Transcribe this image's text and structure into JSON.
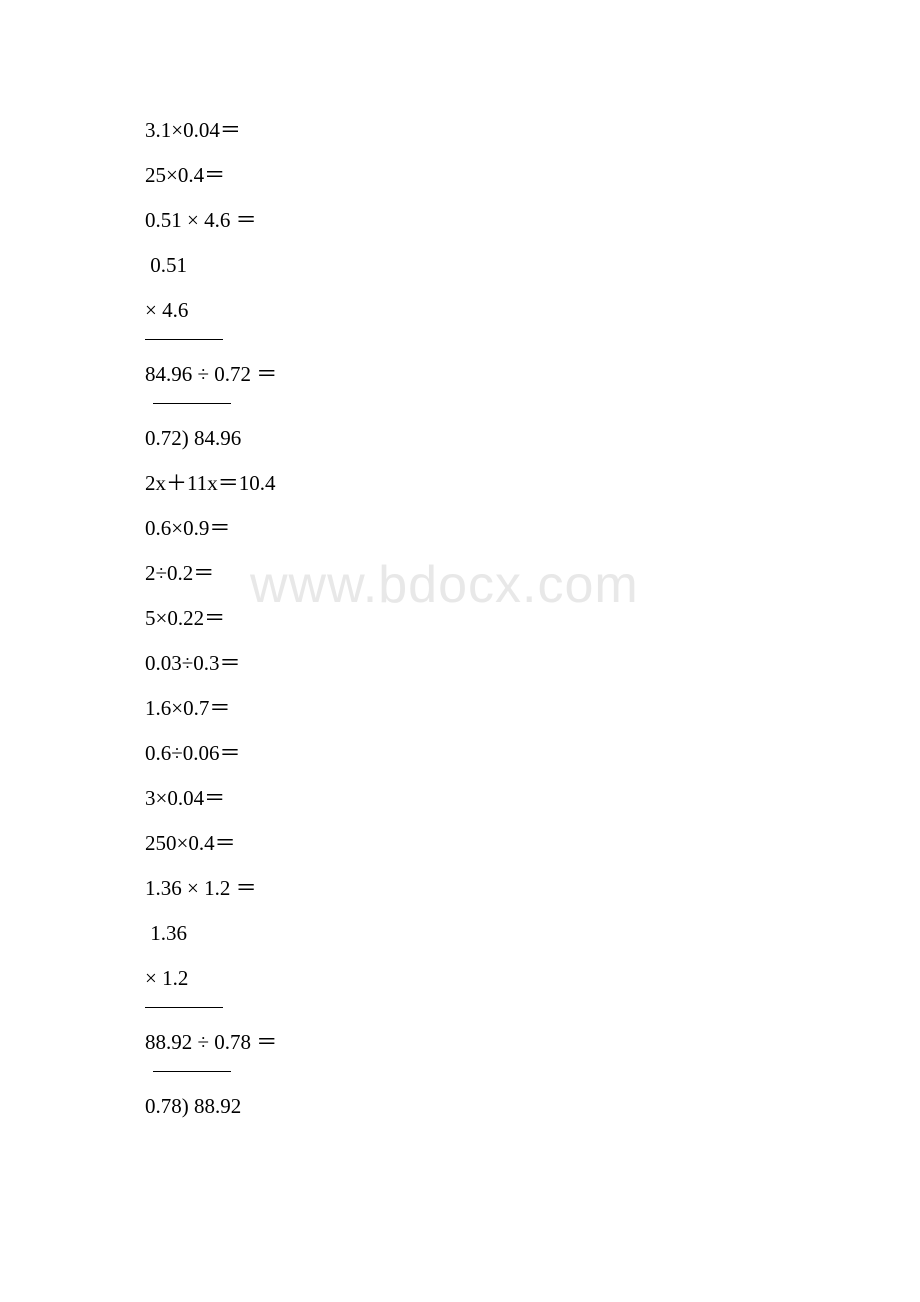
{
  "watermark": "www.bdocx.com",
  "lines": [
    {
      "type": "text",
      "value": "3.1×0.04＝"
    },
    {
      "type": "text",
      "value": "25×0.4＝"
    },
    {
      "type": "text",
      "value": "0.51 × 4.6 ＝"
    },
    {
      "type": "text",
      "value": " 0.51"
    },
    {
      "type": "text",
      "value": "× 4.6"
    },
    {
      "type": "hr",
      "indent": false
    },
    {
      "type": "text",
      "value": "84.96 ÷ 0.72 ＝"
    },
    {
      "type": "hr",
      "indent": true
    },
    {
      "type": "text",
      "value": "0.72) 84.96"
    },
    {
      "type": "text",
      "value": "2x＋11x＝10.4"
    },
    {
      "type": "text",
      "value": "0.6×0.9＝"
    },
    {
      "type": "text",
      "value": "2÷0.2＝"
    },
    {
      "type": "text",
      "value": "5×0.22＝"
    },
    {
      "type": "text",
      "value": "0.03÷0.3＝"
    },
    {
      "type": "text",
      "value": "1.6×0.7＝"
    },
    {
      "type": "text",
      "value": "0.6÷0.06＝"
    },
    {
      "type": "text",
      "value": "3×0.04＝"
    },
    {
      "type": "text",
      "value": "250×0.4＝"
    },
    {
      "type": "text",
      "value": "1.36 × 1.2 ＝"
    },
    {
      "type": "text",
      "value": " 1.36"
    },
    {
      "type": "text",
      "value": "× 1.2"
    },
    {
      "type": "hr",
      "indent": false
    },
    {
      "type": "text",
      "value": "88.92 ÷ 0.78 ＝"
    },
    {
      "type": "hr",
      "indent": true
    },
    {
      "type": "text",
      "value": "0.78) 88.92"
    }
  ]
}
